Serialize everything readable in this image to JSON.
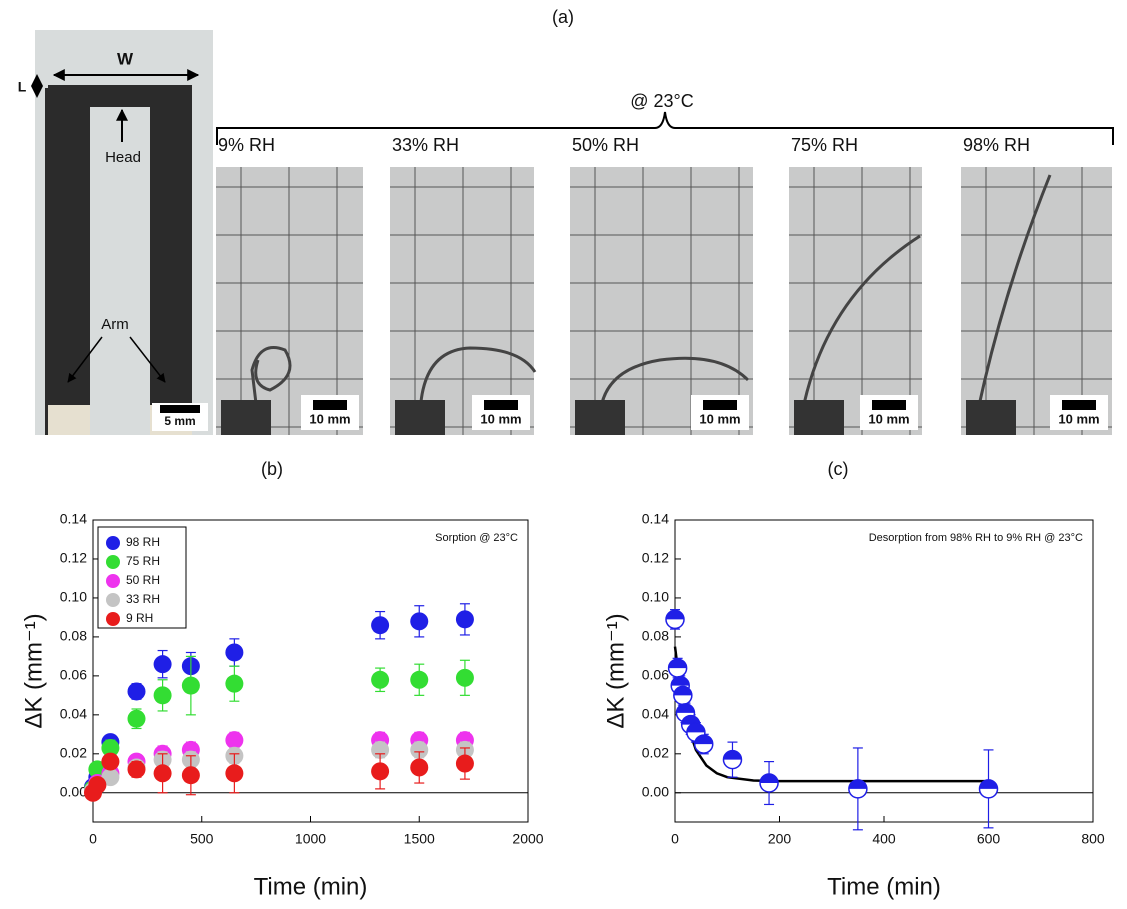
{
  "panel_a": {
    "label": "(a)",
    "width_label": "W",
    "length_label": "L",
    "head_label": "Head",
    "arm_label": "Arm",
    "scale": "5 mm",
    "condition": "@ 23°C",
    "photos": [
      {
        "rh": "9% RH",
        "scale": "10 mm"
      },
      {
        "rh": "33% RH",
        "scale": "10 mm"
      },
      {
        "rh": "50% RH",
        "scale": "10 mm"
      },
      {
        "rh": "75% RH",
        "scale": "10 mm"
      },
      {
        "rh": "98% RH",
        "scale": "10 mm"
      }
    ]
  },
  "chart_data": [
    {
      "type": "scatter",
      "label": "(b)",
      "annotation": "Sorption @ 23°C",
      "xlabel": "Time (min)",
      "ylabel": "ΔK (mm⁻¹)",
      "xlim": [
        0,
        2000
      ],
      "xticks": [
        0,
        500,
        1000,
        1500,
        2000
      ],
      "ylim": [
        -0.015,
        0.14
      ],
      "yticks": [
        {
          "value": 0,
          "label": "0.00"
        },
        {
          "value": 0.02,
          "label": "0.02"
        },
        {
          "value": 0.04,
          "label": "0.04"
        },
        {
          "value": 0.06,
          "label": "0.06"
        },
        {
          "value": 0.08,
          "label": "0.08"
        },
        {
          "value": 0.1,
          "label": "0.10"
        },
        {
          "value": 0.12,
          "label": "0.12"
        },
        {
          "value": 0.14,
          "label": "0.14"
        }
      ],
      "legend": "upper left",
      "x": [
        0,
        20,
        80,
        200,
        320,
        450,
        650,
        1320,
        1500,
        1710
      ],
      "series": [
        {
          "name": "98 RH",
          "color": "#1f1fe6",
          "values": [
            0.003,
            0.008,
            0.026,
            0.052,
            0.066,
            0.065,
            0.072,
            0.086,
            0.088,
            0.089
          ],
          "errors": [
            0.001,
            0.002,
            0.003,
            0.004,
            0.007,
            0.007,
            0.007,
            0.007,
            0.008,
            0.008
          ]
        },
        {
          "name": "75 RH",
          "color": "#33dd33",
          "values": [
            0.002,
            0.012,
            0.023,
            0.038,
            0.05,
            0.055,
            0.056,
            0.058,
            0.058,
            0.059
          ],
          "errors": [
            0.001,
            0.003,
            0.004,
            0.005,
            0.008,
            0.015,
            0.009,
            0.006,
            0.008,
            0.009
          ]
        },
        {
          "name": "50 RH",
          "color": "#ee33ee",
          "values": [
            0.001,
            0.005,
            0.01,
            0.016,
            0.02,
            0.022,
            0.027,
            0.027,
            0.027,
            0.027
          ],
          "errors": [
            0.001,
            0.002,
            0.003,
            0.003,
            0.004,
            0.004,
            0.004,
            0.004,
            0.004,
            0.004
          ]
        },
        {
          "name": "33 RH",
          "color": "#c4c4c4",
          "values": [
            0.001,
            0.004,
            0.008,
            0.013,
            0.017,
            0.017,
            0.019,
            0.022,
            0.022,
            0.022
          ],
          "errors": [
            0.001,
            0.002,
            0.003,
            0.003,
            0.004,
            0.004,
            0.004,
            0.004,
            0.004,
            0.004
          ]
        },
        {
          "name": "9 RH",
          "color": "#e81c1c",
          "values": [
            0.0,
            0.004,
            0.016,
            0.012,
            0.01,
            0.009,
            0.01,
            0.011,
            0.013,
            0.015
          ],
          "errors": [
            0.001,
            0.002,
            0.003,
            0.004,
            0.01,
            0.01,
            0.01,
            0.009,
            0.008,
            0.008
          ]
        }
      ]
    },
    {
      "type": "scatter",
      "label": "(c)",
      "annotation": "Desorption from 98% RH to 9% RH @ 23°C",
      "xlabel": "Time (min)",
      "ylabel": "ΔK (mm⁻¹)",
      "xlim": [
        0,
        800
      ],
      "xticks": [
        0,
        200,
        400,
        600,
        800
      ],
      "ylim": [
        -0.015,
        0.14
      ],
      "yticks": [
        {
          "value": 0,
          "label": "0.00"
        },
        {
          "value": 0.02,
          "label": "0.02"
        },
        {
          "value": 0.04,
          "label": "0.04"
        },
        {
          "value": 0.06,
          "label": "0.06"
        },
        {
          "value": 0.08,
          "label": "0.08"
        },
        {
          "value": 0.1,
          "label": "0.10"
        },
        {
          "value": 0.12,
          "label": "0.12"
        },
        {
          "value": 0.14,
          "label": "0.14"
        }
      ],
      "x": [
        0,
        5,
        10,
        15,
        20,
        30,
        40,
        55,
        110,
        180,
        350,
        600
      ],
      "series": [
        {
          "color": "#1f1fe6",
          "values": [
            0.089,
            0.064,
            0.055,
            0.05,
            0.041,
            0.035,
            0.031,
            0.025,
            0.017,
            0.005,
            0.002,
            0.002
          ],
          "errors": [
            0.005,
            0.005,
            0.005,
            0.005,
            0.005,
            0.005,
            0.005,
            0.005,
            0.009,
            0.011,
            0.021,
            0.02
          ]
        }
      ],
      "fit": {
        "color": "#000000",
        "x": [
          0,
          10,
          20,
          30,
          40,
          60,
          80,
          100,
          150,
          200,
          300,
          400,
          500,
          600
        ],
        "values": [
          0.075,
          0.054,
          0.04,
          0.03,
          0.022,
          0.014,
          0.01,
          0.008,
          0.0063,
          0.006,
          0.006,
          0.006,
          0.006,
          0.006
        ]
      }
    }
  ]
}
